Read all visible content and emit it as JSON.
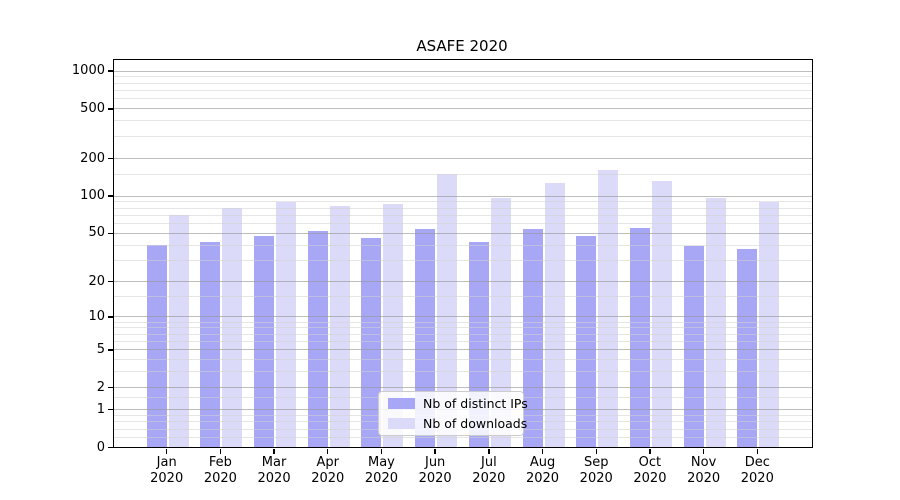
{
  "chart_data": {
    "type": "bar",
    "title": "ASAFE 2020",
    "categories": [
      "Jan",
      "Feb",
      "Mar",
      "Apr",
      "May",
      "Jun",
      "Jul",
      "Aug",
      "Sep",
      "Oct",
      "Nov",
      "Dec"
    ],
    "year": "2020",
    "series": [
      {
        "name": "Nb of distinct IPs",
        "color": "#a7a7f6",
        "values": [
          40,
          42,
          47,
          52,
          45,
          54,
          42,
          54,
          47,
          55,
          39,
          37
        ]
      },
      {
        "name": "Nb of downloads",
        "color": "#dbdbf9",
        "values": [
          70,
          80,
          88,
          82,
          85,
          150,
          95,
          127,
          160,
          130,
          96,
          88
        ]
      }
    ],
    "xlabel": "",
    "ylabel": "",
    "y_axis": {
      "scale": "log1p",
      "ticks": [
        0,
        1,
        2,
        5,
        10,
        20,
        50,
        100,
        200,
        500,
        1000
      ],
      "minor_ticks": [
        0.2,
        0.4,
        0.6,
        0.8,
        1.5,
        3,
        4,
        6,
        7,
        8,
        9,
        15,
        30,
        40,
        60,
        70,
        80,
        90,
        150,
        300,
        400,
        600,
        700,
        800,
        900
      ],
      "max": 1215
    },
    "grid": "on",
    "legend": {
      "position": "lower center"
    }
  },
  "colors": {
    "bar_distinct_ips": "#a7a7f6",
    "bar_downloads": "#dbdbf9",
    "major_grid": "#bcbcbc",
    "minor_grid": "#ebebeb",
    "axis": "#000000"
  }
}
